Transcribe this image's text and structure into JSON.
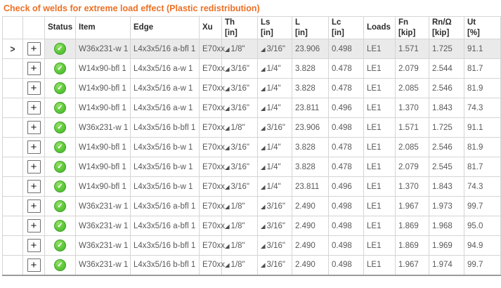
{
  "title": "Check of welds for extreme load effect (Plastic redistribution)",
  "colors": {
    "title_orange": "#ED7025",
    "status_green": "#5EC93A",
    "selected_row_bg": "#EAEAEA",
    "grid_line": "#D5D5D5",
    "outer_border": "#ABABAB",
    "cell_text": "#595959",
    "header_text": "#2B2B2B"
  },
  "icons": {
    "expand_chevron": ">",
    "plus": "+",
    "check": "✓",
    "weld_fillet": "◢"
  },
  "table": {
    "columns": [
      {
        "key": "expander",
        "label": "",
        "width": 29
      },
      {
        "key": "plus",
        "label": "",
        "width": 31
      },
      {
        "key": "status",
        "label": "Status",
        "width": 44
      },
      {
        "key": "item",
        "label": "Item",
        "width": 78
      },
      {
        "key": "edge",
        "label": "Edge",
        "width": 98
      },
      {
        "key": "xu",
        "label": "Xu",
        "width": 32
      },
      {
        "key": "th",
        "label": "Th",
        "unit": "[in]",
        "width": 51
      },
      {
        "key": "ls",
        "label": "Ls",
        "unit": "[in]",
        "width": 49
      },
      {
        "key": "l",
        "label": "L",
        "unit": "[in]",
        "width": 52
      },
      {
        "key": "lc",
        "label": "Lc",
        "unit": "[in]",
        "width": 50
      },
      {
        "key": "loads",
        "label": "Loads",
        "width": 45
      },
      {
        "key": "fn",
        "label": "Fn",
        "unit": "[kip]",
        "width": 48
      },
      {
        "key": "rn",
        "label": "Rn/Ω",
        "unit": "[kip]",
        "width": 50
      },
      {
        "key": "ut",
        "label": "Ut",
        "unit": "[%]",
        "width": 52
      }
    ],
    "rows": [
      {
        "selected": true,
        "status": "ok",
        "item": "W36x231-w 1",
        "edge": "L4x3x5/16 a-bfl 1",
        "xu": "E70xx",
        "th": "1/8\"",
        "ls": "3/16\"",
        "l": "23.906",
        "lc": "0.498",
        "loads": "LE1",
        "fn": "1.571",
        "rn": "1.725",
        "ut": "91.1"
      },
      {
        "selected": false,
        "status": "ok",
        "item": "W14x90-bfl 1",
        "edge": "L4x3x5/16 a-w 1",
        "xu": "E70xx",
        "th": "3/16\"",
        "ls": "1/4\"",
        "l": "3.828",
        "lc": "0.478",
        "loads": "LE1",
        "fn": "2.079",
        "rn": "2.544",
        "ut": "81.7"
      },
      {
        "selected": false,
        "status": "ok",
        "item": "W14x90-bfl 1",
        "edge": "L4x3x5/16 a-w 1",
        "xu": "E70xx",
        "th": "3/16\"",
        "ls": "1/4\"",
        "l": "3.828",
        "lc": "0.478",
        "loads": "LE1",
        "fn": "2.085",
        "rn": "2.546",
        "ut": "81.9"
      },
      {
        "selected": false,
        "status": "ok",
        "item": "W14x90-bfl 1",
        "edge": "L4x3x5/16 a-w 1",
        "xu": "E70xx",
        "th": "3/16\"",
        "ls": "1/4\"",
        "l": "23.811",
        "lc": "0.496",
        "loads": "LE1",
        "fn": "1.370",
        "rn": "1.843",
        "ut": "74.3"
      },
      {
        "selected": false,
        "status": "ok",
        "item": "W36x231-w 1",
        "edge": "L4x3x5/16 b-bfl 1",
        "xu": "E70xx",
        "th": "1/8\"",
        "ls": "3/16\"",
        "l": "23.906",
        "lc": "0.498",
        "loads": "LE1",
        "fn": "1.571",
        "rn": "1.725",
        "ut": "91.1"
      },
      {
        "selected": false,
        "status": "ok",
        "item": "W14x90-bfl 1",
        "edge": "L4x3x5/16 b-w 1",
        "xu": "E70xx",
        "th": "3/16\"",
        "ls": "1/4\"",
        "l": "3.828",
        "lc": "0.478",
        "loads": "LE1",
        "fn": "2.085",
        "rn": "2.546",
        "ut": "81.9"
      },
      {
        "selected": false,
        "status": "ok",
        "item": "W14x90-bfl 1",
        "edge": "L4x3x5/16 b-w 1",
        "xu": "E70xx",
        "th": "3/16\"",
        "ls": "1/4\"",
        "l": "3.828",
        "lc": "0.478",
        "loads": "LE1",
        "fn": "2.079",
        "rn": "2.545",
        "ut": "81.7"
      },
      {
        "selected": false,
        "status": "ok",
        "item": "W14x90-bfl 1",
        "edge": "L4x3x5/16 b-w 1",
        "xu": "E70xx",
        "th": "3/16\"",
        "ls": "1/4\"",
        "l": "23.811",
        "lc": "0.496",
        "loads": "LE1",
        "fn": "1.370",
        "rn": "1.843",
        "ut": "74.3"
      },
      {
        "selected": false,
        "status": "ok",
        "item": "W36x231-w 1",
        "edge": "L4x3x5/16 a-bfl 1",
        "xu": "E70xx",
        "th": "1/8\"",
        "ls": "3/16\"",
        "l": "2.490",
        "lc": "0.498",
        "loads": "LE1",
        "fn": "1.967",
        "rn": "1.973",
        "ut": "99.7"
      },
      {
        "selected": false,
        "status": "ok",
        "item": "W36x231-w 1",
        "edge": "L4x3x5/16 a-bfl 1",
        "xu": "E70xx",
        "th": "1/8\"",
        "ls": "3/16\"",
        "l": "2.490",
        "lc": "0.498",
        "loads": "LE1",
        "fn": "1.869",
        "rn": "1.968",
        "ut": "95.0"
      },
      {
        "selected": false,
        "status": "ok",
        "item": "W36x231-w 1",
        "edge": "L4x3x5/16 b-bfl 1",
        "xu": "E70xx",
        "th": "1/8\"",
        "ls": "3/16\"",
        "l": "2.490",
        "lc": "0.498",
        "loads": "LE1",
        "fn": "1.869",
        "rn": "1.969",
        "ut": "94.9"
      },
      {
        "selected": false,
        "status": "ok",
        "item": "W36x231-w 1",
        "edge": "L4x3x5/16 b-bfl 1",
        "xu": "E70xx",
        "th": "1/8\"",
        "ls": "3/16\"",
        "l": "2.490",
        "lc": "0.498",
        "loads": "LE1",
        "fn": "1.967",
        "rn": "1.974",
        "ut": "99.7"
      }
    ]
  }
}
